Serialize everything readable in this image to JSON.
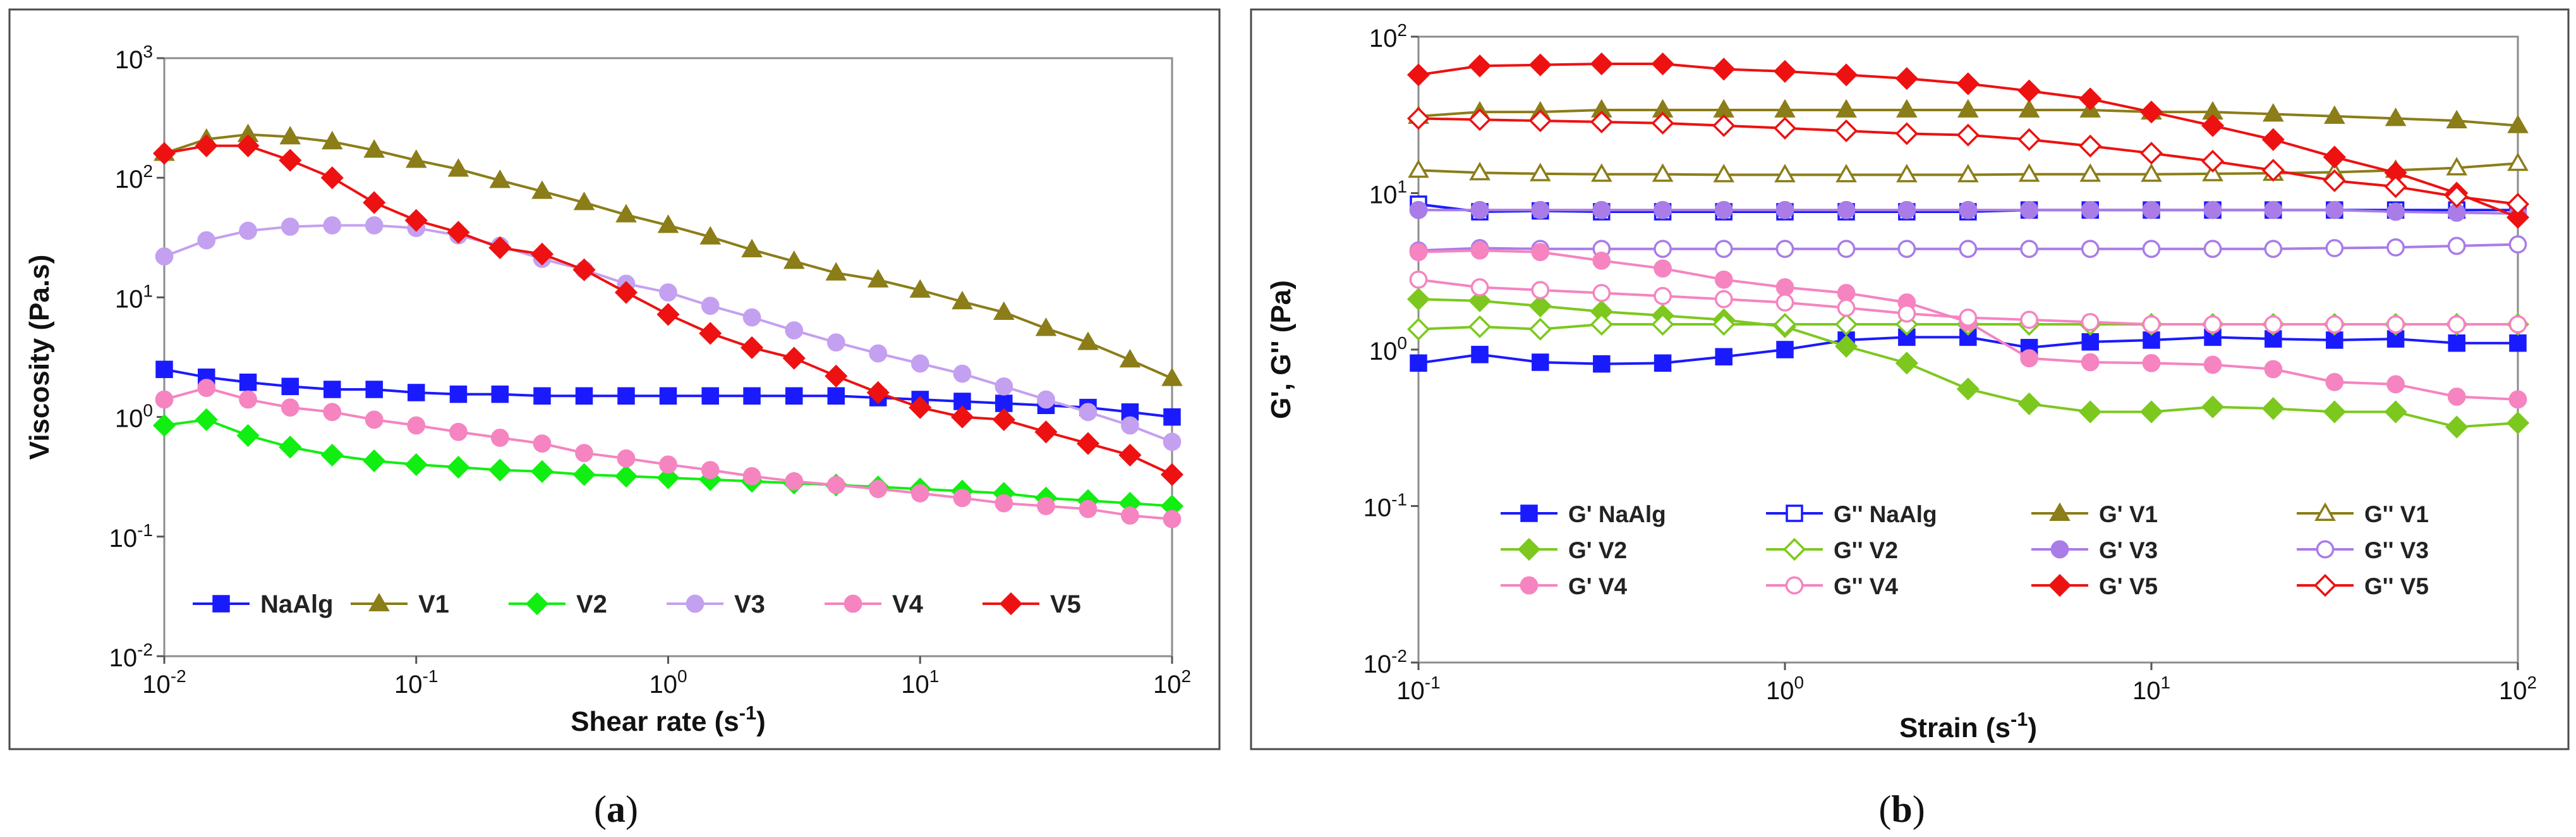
{
  "chart_data": [
    {
      "type": "line",
      "id": "a",
      "panel_label": "a",
      "xlabel": "Shear rate (s",
      "xlabel_sup": "-1",
      "xlabel_end": ")",
      "ylabel": "Viscosity (Pa.s)",
      "xscale": "log",
      "yscale": "log",
      "xlim_exp": [
        -2,
        2
      ],
      "ylim_exp": [
        -2,
        3
      ],
      "xticks": [
        {
          "base": "10",
          "exp": "-2"
        },
        {
          "base": "10",
          "exp": "-1"
        },
        {
          "base": "10",
          "exp": "0"
        },
        {
          "base": "10",
          "exp": "1"
        },
        {
          "base": "10",
          "exp": "2"
        }
      ],
      "yticks": [
        {
          "base": "10",
          "exp": "-2"
        },
        {
          "base": "10",
          "exp": "-1"
        },
        {
          "base": "10",
          "exp": "0"
        },
        {
          "base": "10",
          "exp": "1"
        },
        {
          "base": "10",
          "exp": "2"
        },
        {
          "base": "10",
          "exp": "3"
        }
      ],
      "legend_position": "bottom",
      "x": [
        0.01,
        0.0147,
        0.0215,
        0.0316,
        0.0464,
        0.0681,
        0.1,
        0.147,
        0.215,
        0.316,
        0.464,
        0.681,
        1,
        1.47,
        2.15,
        3.16,
        4.64,
        6.81,
        10,
        14.7,
        21.5,
        31.6,
        46.4,
        68.1,
        100
      ],
      "series": [
        {
          "name": "NaAlg",
          "color": "#1a1aff",
          "marker": "square",
          "filled": true,
          "values": [
            2.5,
            2.15,
            1.95,
            1.8,
            1.7,
            1.7,
            1.6,
            1.55,
            1.55,
            1.5,
            1.5,
            1.5,
            1.5,
            1.5,
            1.5,
            1.5,
            1.5,
            1.45,
            1.4,
            1.35,
            1.3,
            1.25,
            1.2,
            1.1,
            1.0
          ]
        },
        {
          "name": "V1",
          "color": "#8b7d18",
          "marker": "triangle",
          "filled": true,
          "values": [
            160,
            210,
            230,
            220,
            200,
            170,
            140,
            118,
            95,
            77,
            62,
            49,
            40,
            32,
            25,
            20,
            16,
            14,
            11.5,
            9.2,
            7.5,
            5.5,
            4.2,
            3.0,
            2.1
          ]
        },
        {
          "name": "V2",
          "color": "#11ee11",
          "marker": "diamond",
          "filled": true,
          "values": [
            0.85,
            0.95,
            0.7,
            0.56,
            0.48,
            0.43,
            0.4,
            0.38,
            0.36,
            0.35,
            0.33,
            0.32,
            0.31,
            0.3,
            0.29,
            0.28,
            0.27,
            0.26,
            0.25,
            0.24,
            0.23,
            0.21,
            0.2,
            0.19,
            0.18
          ]
        },
        {
          "name": "V3",
          "color": "#c4a0f0",
          "marker": "circle",
          "filled": true,
          "values": [
            22,
            30,
            36,
            39,
            40,
            40,
            38,
            33,
            27,
            21,
            17,
            13,
            11,
            8.5,
            6.8,
            5.3,
            4.2,
            3.4,
            2.8,
            2.3,
            1.8,
            1.4,
            1.1,
            0.85,
            0.62
          ]
        },
        {
          "name": "V4",
          "color": "#f584c0",
          "marker": "circle",
          "filled": true,
          "values": [
            1.4,
            1.75,
            1.4,
            1.2,
            1.1,
            0.95,
            0.85,
            0.75,
            0.67,
            0.6,
            0.5,
            0.45,
            0.4,
            0.36,
            0.32,
            0.29,
            0.27,
            0.25,
            0.23,
            0.21,
            0.19,
            0.18,
            0.17,
            0.15,
            0.14
          ]
        },
        {
          "name": "V5",
          "color": "#ee1111",
          "marker": "diamond",
          "filled": true,
          "values": [
            160,
            185,
            185,
            140,
            100,
            62,
            44,
            35,
            26,
            23,
            17,
            11,
            7.2,
            5.0,
            3.8,
            3.1,
            2.2,
            1.6,
            1.2,
            1.0,
            0.95,
            0.75,
            0.6,
            0.48,
            0.33
          ]
        }
      ]
    },
    {
      "type": "line",
      "id": "b",
      "panel_label": "b",
      "xlabel": "Strain (s",
      "xlabel_sup": "-1",
      "xlabel_end": ")",
      "ylabel": "G', G'' (Pa)",
      "xscale": "log",
      "yscale": "log",
      "xlim_exp": [
        -1,
        2
      ],
      "ylim_exp": [
        -2,
        2
      ],
      "xticks": [
        {
          "base": "10",
          "exp": "-1"
        },
        {
          "base": "10",
          "exp": "0"
        },
        {
          "base": "10",
          "exp": "1"
        },
        {
          "base": "10",
          "exp": "2"
        }
      ],
      "yticks": [
        {
          "base": "10",
          "exp": "-2"
        },
        {
          "base": "10",
          "exp": "-1"
        },
        {
          "base": "10",
          "exp": "0"
        },
        {
          "base": "10",
          "exp": "1"
        },
        {
          "base": "10",
          "exp": "2"
        }
      ],
      "legend_position": "bottom",
      "x": [
        0.1,
        0.147,
        0.215,
        0.316,
        0.464,
        0.681,
        1,
        1.47,
        2.15,
        3.16,
        4.64,
        6.81,
        10,
        14.7,
        21.5,
        31.6,
        46.4,
        68.1,
        100
      ],
      "series": [
        {
          "name": "G' NaAlg",
          "color": "#1a1aff",
          "marker": "square",
          "filled": true,
          "values": [
            0.82,
            0.93,
            0.83,
            0.81,
            0.82,
            0.9,
            1.0,
            1.15,
            1.2,
            1.2,
            1.03,
            1.12,
            1.15,
            1.2,
            1.17,
            1.15,
            1.17,
            1.1,
            1.1
          ]
        },
        {
          "name": "G'' NaAlg",
          "color": "#1a1aff",
          "marker": "square",
          "filled": false,
          "values": [
            8.5,
            7.6,
            7.7,
            7.6,
            7.6,
            7.6,
            7.6,
            7.6,
            7.6,
            7.6,
            7.8,
            7.8,
            7.8,
            7.8,
            7.8,
            7.8,
            7.8,
            7.8,
            7.8
          ]
        },
        {
          "name": "G' V1",
          "color": "#8b7d18",
          "marker": "triangle",
          "filled": true,
          "values": [
            31,
            33,
            33,
            34,
            34,
            34,
            34,
            34,
            34,
            34,
            34,
            34,
            33,
            33,
            32,
            31,
            30,
            29,
            27
          ]
        },
        {
          "name": "G'' V1",
          "color": "#8b7d18",
          "marker": "triangle",
          "filled": false,
          "values": [
            14,
            13.5,
            13.3,
            13.2,
            13.2,
            13.1,
            13.1,
            13.1,
            13.1,
            13.1,
            13.2,
            13.2,
            13.2,
            13.3,
            13.4,
            13.6,
            14,
            14.5,
            15.5
          ]
        },
        {
          "name": "G' V2",
          "color": "#7cc81e",
          "marker": "diamond",
          "filled": true,
          "values": [
            2.1,
            2.05,
            1.9,
            1.75,
            1.65,
            1.55,
            1.4,
            1.05,
            0.82,
            0.56,
            0.45,
            0.4,
            0.4,
            0.43,
            0.42,
            0.4,
            0.4,
            0.32,
            0.34
          ]
        },
        {
          "name": "G'' V2",
          "color": "#7cc81e",
          "marker": "diamond",
          "filled": false,
          "values": [
            1.35,
            1.4,
            1.35,
            1.45,
            1.45,
            1.45,
            1.45,
            1.45,
            1.45,
            1.45,
            1.45,
            1.45,
            1.45,
            1.45,
            1.45,
            1.45,
            1.45,
            1.45,
            1.45
          ]
        },
        {
          "name": "G' V3",
          "color": "#a97ce8",
          "marker": "circle",
          "filled": true,
          "values": [
            7.8,
            7.8,
            7.8,
            7.8,
            7.8,
            7.8,
            7.8,
            7.8,
            7.8,
            7.8,
            7.8,
            7.8,
            7.8,
            7.8,
            7.8,
            7.8,
            7.6,
            7.5,
            7.4
          ]
        },
        {
          "name": "G'' V3",
          "color": "#a97ce8",
          "marker": "circle",
          "filled": false,
          "values": [
            4.3,
            4.45,
            4.4,
            4.4,
            4.4,
            4.4,
            4.4,
            4.4,
            4.4,
            4.4,
            4.4,
            4.4,
            4.4,
            4.4,
            4.4,
            4.45,
            4.5,
            4.6,
            4.7
          ]
        },
        {
          "name": "G' V4",
          "color": "#f584c0",
          "marker": "circle",
          "filled": true,
          "values": [
            4.2,
            4.3,
            4.2,
            3.7,
            3.3,
            2.8,
            2.5,
            2.3,
            2.0,
            1.5,
            0.88,
            0.83,
            0.82,
            0.8,
            0.75,
            0.62,
            0.6,
            0.5,
            0.48
          ]
        },
        {
          "name": "G'' V4",
          "color": "#f584c0",
          "marker": "circle",
          "filled": false,
          "values": [
            2.8,
            2.5,
            2.4,
            2.3,
            2.2,
            2.1,
            2.0,
            1.85,
            1.7,
            1.6,
            1.55,
            1.5,
            1.45,
            1.45,
            1.45,
            1.45,
            1.45,
            1.45,
            1.45
          ]
        },
        {
          "name": "G' V5",
          "color": "#ee1111",
          "marker": "diamond",
          "filled": true,
          "values": [
            57,
            65,
            66,
            67,
            67,
            62,
            60,
            57,
            54,
            50,
            45,
            40,
            33,
            27,
            22,
            17,
            13.5,
            10,
            7
          ]
        },
        {
          "name": "G'' V5",
          "color": "#ee1111",
          "marker": "diamond",
          "filled": false,
          "values": [
            30,
            29.5,
            29,
            28.5,
            28,
            27,
            26,
            25,
            24,
            23.5,
            22,
            20,
            18,
            16,
            14,
            12,
            11,
            9.5,
            8.5
          ]
        }
      ]
    }
  ]
}
